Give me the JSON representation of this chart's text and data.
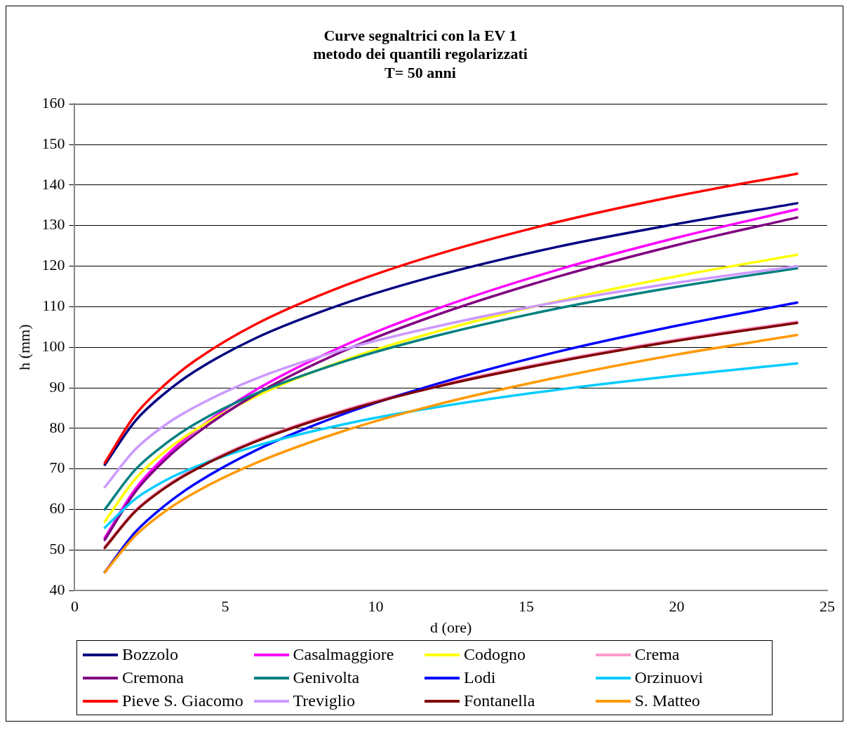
{
  "chart_data": {
    "type": "line",
    "title": "Curve segnaltrici con la EV 1\nmetodo dei quantili regolarizzati\nT= 50 anni",
    "xlabel": "d (ore)",
    "ylabel": "h (mm)",
    "x": [
      1,
      2,
      3,
      4,
      6,
      9,
      12,
      16,
      20,
      24
    ],
    "xlim": [
      0,
      25
    ],
    "xticks": [
      0,
      5,
      10,
      15,
      20,
      25
    ],
    "ylim": [
      40,
      160
    ],
    "yticks": [
      40,
      50,
      60,
      70,
      80,
      90,
      100,
      110,
      120,
      130,
      140,
      150,
      160
    ],
    "grid": "y",
    "legend": "bottom",
    "marker": "none",
    "line_style": "solid",
    "series": [
      {
        "name": "Bozzolo",
        "color": "#000080",
        "values": [
          71,
          81.7,
          88.7,
          94.1,
          102.2,
          110.9,
          117.6,
          124.7,
          130.4,
          135.5
        ]
      },
      {
        "name": "Casalmaggiore",
        "color": "#ff00ff",
        "values": [
          53,
          64.9,
          73.0,
          79.4,
          89.4,
          100.6,
          109.4,
          119.0,
          127.0,
          134
        ]
      },
      {
        "name": "Codogno",
        "color": "#ffff00",
        "values": [
          57,
          67.4,
          74.3,
          79.6,
          87.8,
          96.9,
          103.8,
          111.3,
          117.5,
          122.8
        ]
      },
      {
        "name": "Crema",
        "color": "#ff99cc",
        "values": [
          50.8,
          59.7,
          65.6,
          70.1,
          77.0,
          84.6,
          90.5,
          96.7,
          101.9,
          106.3
        ]
      },
      {
        "name": "Cremona",
        "color": "#800080",
        "values": [
          52.5,
          64.2,
          72.2,
          78.5,
          88.3,
          99.3,
          107.9,
          117.3,
          125.2,
          132
        ]
      },
      {
        "name": "Genivolta",
        "color": "#008080",
        "values": [
          60,
          69.7,
          76.1,
          81.1,
          88.5,
          96.6,
          102.8,
          109.5,
          114.9,
          119.5
        ]
      },
      {
        "name": "Lodi",
        "color": "#0000ff",
        "values": [
          44.5,
          54.3,
          61.0,
          66.3,
          74.5,
          83.7,
          90.9,
          98.8,
          105.3,
          111
        ]
      },
      {
        "name": "Orzinuovi",
        "color": "#00ccff",
        "values": [
          55.5,
          62.5,
          67.1,
          70.5,
          75.6,
          81.1,
          85.2,
          89.5,
          93.0,
          96
        ]
      },
      {
        "name": "Pieve S. Giacomo",
        "color": "#ff0000",
        "values": [
          71.5,
          83.2,
          90.8,
          96.7,
          105.6,
          115.3,
          122.8,
          130.8,
          137.3,
          142.8
        ]
      },
      {
        "name": "Treviglio",
        "color": "#cc99ff",
        "values": [
          65.5,
          74.7,
          80.8,
          85.3,
          92.2,
          99.6,
          105.1,
          111.1,
          115.9,
          120
        ]
      },
      {
        "name": "Fontanella",
        "color": "#800000",
        "values": [
          50.5,
          59.4,
          65.3,
          69.8,
          76.7,
          84.3,
          90.2,
          96.4,
          101.6,
          106
        ]
      },
      {
        "name": "S. Matteo",
        "color": "#ff9900",
        "values": [
          44.5,
          53.4,
          59.5,
          64.2,
          71.4,
          79.5,
          85.8,
          92.5,
          98.2,
          103
        ]
      }
    ]
  }
}
